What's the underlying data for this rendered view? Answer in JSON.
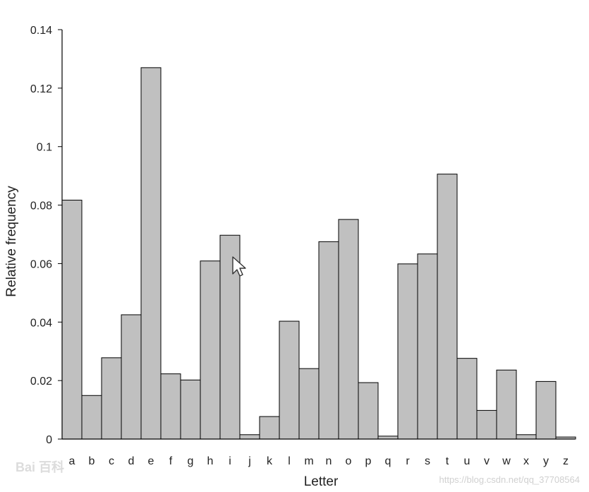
{
  "chart_data": {
    "type": "bar",
    "xlabel": "Letter",
    "ylabel": "Relative frequency",
    "ylim": [
      0,
      0.14
    ],
    "yticks": [
      "0",
      "0.02",
      "0.04",
      "0.06",
      "0.08",
      "0.1",
      "0.12",
      "0.14"
    ],
    "grid": false,
    "legend": "none",
    "bar_color": "#c0c0c0",
    "edge_color": "#000000",
    "categories": [
      "a",
      "b",
      "c",
      "d",
      "e",
      "f",
      "g",
      "h",
      "i",
      "j",
      "k",
      "l",
      "m",
      "n",
      "o",
      "p",
      "q",
      "r",
      "s",
      "t",
      "u",
      "v",
      "w",
      "x",
      "y",
      "z"
    ],
    "values": [
      0.0817,
      0.0149,
      0.0278,
      0.0425,
      0.127,
      0.0223,
      0.0202,
      0.0609,
      0.0697,
      0.0015,
      0.0077,
      0.0403,
      0.0241,
      0.0675,
      0.0751,
      0.0193,
      0.001,
      0.0599,
      0.0633,
      0.0906,
      0.0276,
      0.0098,
      0.0236,
      0.0015,
      0.0197,
      0.0007
    ]
  },
  "watermark": {
    "source_text": "https://blog.csdn.net/qq_37708564",
    "logo_text": "Bai 百科"
  },
  "cursor": {
    "icon": "arrow-cursor-icon"
  }
}
